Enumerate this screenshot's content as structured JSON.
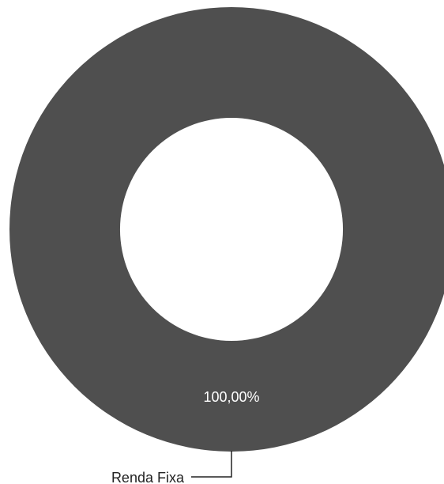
{
  "chart_data": {
    "type": "pie",
    "donut": true,
    "categories": [
      "Renda Fixa"
    ],
    "values": [
      100
    ],
    "value_labels": [
      "100,00%"
    ],
    "colors": [
      "#4f4f4f"
    ],
    "legend": "none"
  }
}
